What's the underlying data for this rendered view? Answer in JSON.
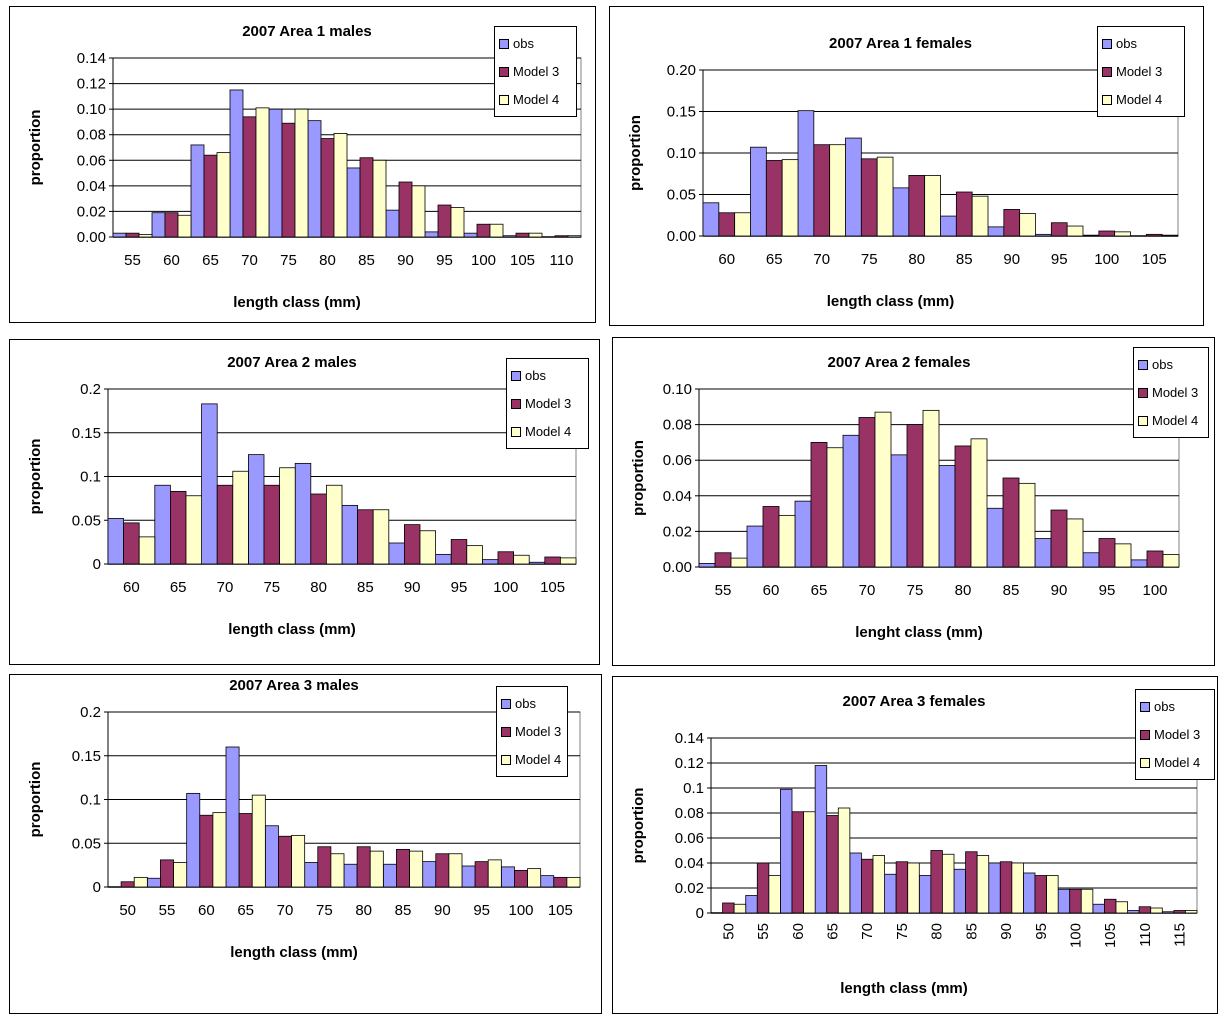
{
  "colors": {
    "obs": "#9999ff",
    "model3": "#993366",
    "model4": "#ffffcc",
    "plot_bg": "#ffffff",
    "grid": "#000000"
  },
  "chart_data": [
    {
      "type": "bar",
      "title": "2007 Area 1 males",
      "xlabel": "length class (mm)",
      "ylabel": "proportion",
      "ylim": [
        0,
        0.14
      ],
      "yticks": [
        "0.00",
        "0.02",
        "0.04",
        "0.06",
        "0.08",
        "0.10",
        "0.12",
        "0.14"
      ],
      "categories": [
        "55",
        "60",
        "65",
        "70",
        "75",
        "80",
        "85",
        "90",
        "95",
        "100",
        "105",
        "110"
      ],
      "legend_position": "top-right",
      "series": [
        {
          "name": "obs",
          "values": [
            0.003,
            0.019,
            0.072,
            0.115,
            0.1,
            0.091,
            0.054,
            0.021,
            0.004,
            0.003,
            0.001,
            0.0
          ]
        },
        {
          "name": "Model 3",
          "values": [
            0.003,
            0.019,
            0.064,
            0.094,
            0.089,
            0.077,
            0.062,
            0.043,
            0.025,
            0.01,
            0.003,
            0.001
          ]
        },
        {
          "name": "Model 4",
          "values": [
            0.002,
            0.017,
            0.066,
            0.101,
            0.1,
            0.081,
            0.06,
            0.04,
            0.023,
            0.01,
            0.003,
            0.001
          ]
        }
      ]
    },
    {
      "type": "bar",
      "title": "2007 Area 1 females",
      "xlabel": "length class (mm)",
      "ylabel": "proportion",
      "ylim": [
        0,
        0.2
      ],
      "yticks": [
        "0.00",
        "0.05",
        "0.10",
        "0.15",
        "0.20"
      ],
      "categories": [
        "60",
        "65",
        "70",
        "75",
        "80",
        "85",
        "90",
        "95",
        "100",
        "105"
      ],
      "legend_position": "top-right",
      "series": [
        {
          "name": "obs",
          "values": [
            0.04,
            0.107,
            0.151,
            0.118,
            0.058,
            0.024,
            0.011,
            0.002,
            0.001,
            0.0
          ]
        },
        {
          "name": "Model 3",
          "values": [
            0.028,
            0.091,
            0.11,
            0.093,
            0.073,
            0.053,
            0.032,
            0.016,
            0.006,
            0.002
          ]
        },
        {
          "name": "Model 4",
          "values": [
            0.028,
            0.092,
            0.11,
            0.095,
            0.073,
            0.048,
            0.027,
            0.012,
            0.005,
            0.001
          ]
        }
      ]
    },
    {
      "type": "bar",
      "title": "2007 Area 2 males",
      "xlabel": "length class (mm)",
      "ylabel": "proportion",
      "ylim": [
        0,
        0.2
      ],
      "yticks": [
        "0",
        "0.05",
        "0.1",
        "0.15",
        "0.2"
      ],
      "categories": [
        "60",
        "65",
        "70",
        "75",
        "80",
        "85",
        "90",
        "95",
        "100",
        "105"
      ],
      "legend_position": "top-right",
      "series": [
        {
          "name": "obs",
          "values": [
            0.052,
            0.09,
            0.183,
            0.125,
            0.115,
            0.067,
            0.024,
            0.011,
            0.005,
            0.002
          ]
        },
        {
          "name": "Model 3",
          "values": [
            0.047,
            0.083,
            0.09,
            0.09,
            0.08,
            0.062,
            0.045,
            0.028,
            0.014,
            0.008
          ]
        },
        {
          "name": "Model 4",
          "values": [
            0.031,
            0.078,
            0.106,
            0.11,
            0.09,
            0.062,
            0.038,
            0.021,
            0.01,
            0.007
          ]
        }
      ]
    },
    {
      "type": "bar",
      "title": "2007 Area 2 females",
      "xlabel": "lenght class (mm)",
      "ylabel": "proportion",
      "ylim": [
        0,
        0.1
      ],
      "yticks": [
        "0.00",
        "0.02",
        "0.04",
        "0.06",
        "0.08",
        "0.10"
      ],
      "categories": [
        "55",
        "60",
        "65",
        "70",
        "75",
        "80",
        "85",
        "90",
        "95",
        "100"
      ],
      "legend_position": "top-right",
      "series": [
        {
          "name": "obs",
          "values": [
            0.002,
            0.023,
            0.037,
            0.074,
            0.063,
            0.057,
            0.033,
            0.016,
            0.008,
            0.004
          ]
        },
        {
          "name": "Model 3",
          "values": [
            0.008,
            0.034,
            0.07,
            0.084,
            0.08,
            0.068,
            0.05,
            0.032,
            0.016,
            0.009
          ]
        },
        {
          "name": "Model 4",
          "values": [
            0.005,
            0.029,
            0.067,
            0.087,
            0.088,
            0.072,
            0.047,
            0.027,
            0.013,
            0.007
          ]
        }
      ]
    },
    {
      "type": "bar",
      "title": "2007 Area 3 males",
      "xlabel": "length class (mm)",
      "ylabel": "proportion",
      "ylim": [
        0,
        0.2
      ],
      "yticks": [
        "0",
        "0.05",
        "0.1",
        "0.15",
        "0.2"
      ],
      "categories": [
        "50",
        "55",
        "60",
        "65",
        "70",
        "75",
        "80",
        "85",
        "90",
        "95",
        "100",
        "105"
      ],
      "legend_position": "top-right",
      "series": [
        {
          "name": "obs",
          "values": [
            0.0,
            0.01,
            0.107,
            0.16,
            0.07,
            0.028,
            0.026,
            0.026,
            0.029,
            0.024,
            0.023,
            0.013
          ]
        },
        {
          "name": "Model 3",
          "values": [
            0.006,
            0.031,
            0.082,
            0.084,
            0.058,
            0.046,
            0.046,
            0.043,
            0.038,
            0.029,
            0.019,
            0.011
          ]
        },
        {
          "name": "Model 4",
          "values": [
            0.011,
            0.028,
            0.085,
            0.105,
            0.059,
            0.038,
            0.041,
            0.041,
            0.038,
            0.031,
            0.021,
            0.011
          ]
        }
      ]
    },
    {
      "type": "bar",
      "title": "2007 Area 3 females",
      "xlabel": "length class (mm)",
      "ylabel": "proportion",
      "ylim": [
        0,
        0.14
      ],
      "yticks": [
        "0",
        "0.02",
        "0.04",
        "0.06",
        "0.08",
        "0.1",
        "0.12",
        "0.14"
      ],
      "categories": [
        "50",
        "55",
        "60",
        "65",
        "70",
        "75",
        "80",
        "85",
        "90",
        "95",
        "100",
        "105",
        "110",
        "115"
      ],
      "x_tick_rotation": "vertical",
      "legend_position": "top-right",
      "series": [
        {
          "name": "obs",
          "values": [
            0.0,
            0.014,
            0.099,
            0.118,
            0.048,
            0.031,
            0.03,
            0.035,
            0.04,
            0.032,
            0.019,
            0.007,
            0.002,
            0.001
          ]
        },
        {
          "name": "Model 3",
          "values": [
            0.008,
            0.04,
            0.081,
            0.078,
            0.043,
            0.041,
            0.05,
            0.049,
            0.041,
            0.03,
            0.019,
            0.011,
            0.005,
            0.002
          ]
        },
        {
          "name": "Model 4",
          "values": [
            0.007,
            0.03,
            0.081,
            0.084,
            0.046,
            0.04,
            0.047,
            0.046,
            0.04,
            0.03,
            0.019,
            0.009,
            0.004,
            0.002
          ]
        }
      ]
    }
  ]
}
